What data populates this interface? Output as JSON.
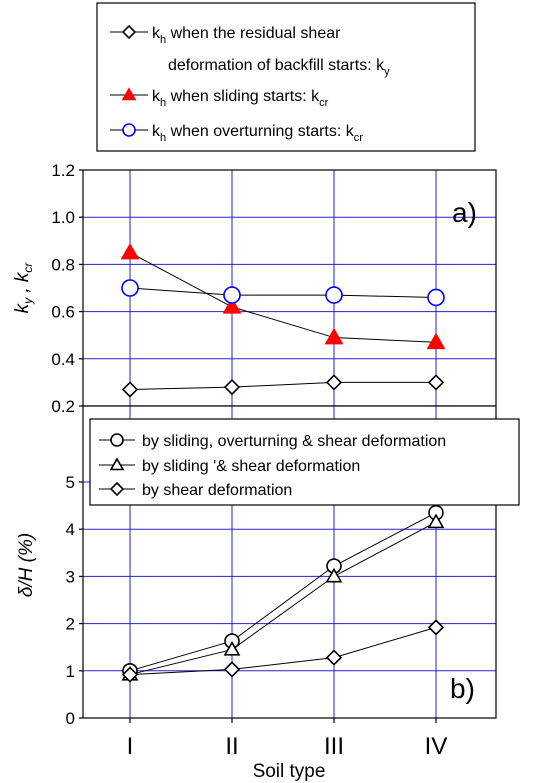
{
  "chart_data": [
    {
      "type": "line",
      "panel_label": "a)",
      "ylabel": "k_y , k_cr",
      "ylim": [
        0.2,
        1.2
      ],
      "yticks": [
        "0.2",
        "0.4",
        "0.6",
        "0.8",
        "1.0",
        "1.2"
      ],
      "categories": [
        "I",
        "II",
        "III",
        "IV"
      ],
      "grid": true,
      "legend": {
        "placement": "top, above plot (boxed)",
        "entries": [
          {
            "sub_k": "h",
            "text1": " when the residual shear",
            "text2": "deformation of backfill starts: k",
            "sub_end": "y"
          },
          {
            "sub_k": "h",
            "text1": " when sliding starts: k",
            "sub_end": "cr"
          },
          {
            "sub_k": "h",
            "text1": " when overturning starts: k",
            "sub_end": "cr"
          }
        ]
      },
      "series": [
        {
          "marker": "diamond",
          "color": "#000000",
          "values": [
            0.27,
            0.28,
            0.3,
            0.3
          ]
        },
        {
          "marker": "triangle",
          "color": "#ff0000",
          "values": [
            0.85,
            0.62,
            0.49,
            0.47
          ]
        },
        {
          "marker": "circle",
          "color": "#0000ff",
          "values": [
            0.7,
            0.67,
            0.67,
            0.66
          ]
        }
      ]
    },
    {
      "type": "line",
      "panel_label": "b)",
      "ylabel": "δ/H (%)",
      "xlabel": "Soil type",
      "ylim": [
        0,
        5
      ],
      "yticks": [
        "0",
        "1",
        "2",
        "3",
        "4",
        "5"
      ],
      "categories": [
        "I",
        "II",
        "III",
        "IV"
      ],
      "grid": true,
      "legend": {
        "placement": "top, overlapping plot (boxed)",
        "entries": [
          {
            "text": "by sliding, overturning & shear deformation"
          },
          {
            "text": "by sliding '& shear deformation"
          },
          {
            "text": "by shear deformation"
          }
        ]
      },
      "series": [
        {
          "name": "by sliding, overturning & shear deformation",
          "marker": "circle",
          "values": [
            1.0,
            1.63,
            3.22,
            4.35
          ]
        },
        {
          "name": "by sliding '& shear deformation",
          "marker": "triangle",
          "values": [
            0.92,
            1.45,
            3.0,
            4.15
          ]
        },
        {
          "name": "by shear deformation",
          "marker": "diamond",
          "values": [
            0.92,
            1.03,
            1.28,
            1.92
          ]
        }
      ]
    }
  ]
}
